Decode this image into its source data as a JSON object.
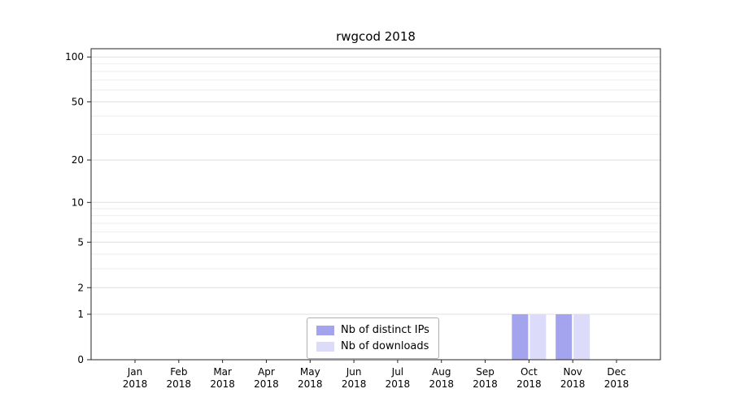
{
  "chart_data": {
    "type": "bar",
    "title": "rwgcod 2018",
    "categories": [
      "Jan",
      "Feb",
      "Mar",
      "Apr",
      "May",
      "Jun",
      "Jul",
      "Aug",
      "Sep",
      "Oct",
      "Nov",
      "Dec"
    ],
    "year": "2018",
    "series": [
      {
        "name": "Nb of distinct IPs",
        "color": "#a3a3ee",
        "values": [
          0,
          0,
          0,
          0,
          0,
          0,
          0,
          0,
          0,
          1,
          1,
          0
        ]
      },
      {
        "name": "Nb of downloads",
        "color": "#dcdcfa",
        "values": [
          0,
          0,
          0,
          0,
          0,
          0,
          0,
          0,
          0,
          1,
          1,
          0
        ]
      }
    ],
    "yticks": [
      0,
      1,
      2,
      5,
      10,
      20,
      50,
      100
    ],
    "minor_gridlines": [
      2,
      3,
      4,
      5,
      6,
      7,
      8,
      9,
      20,
      30,
      40,
      50,
      60,
      70,
      80,
      90
    ],
    "yscale": "log(v+1)",
    "ylim": [
      0,
      100
    ],
    "xlabel": "",
    "ylabel": "",
    "grid": true,
    "legend_position": "lower center"
  }
}
